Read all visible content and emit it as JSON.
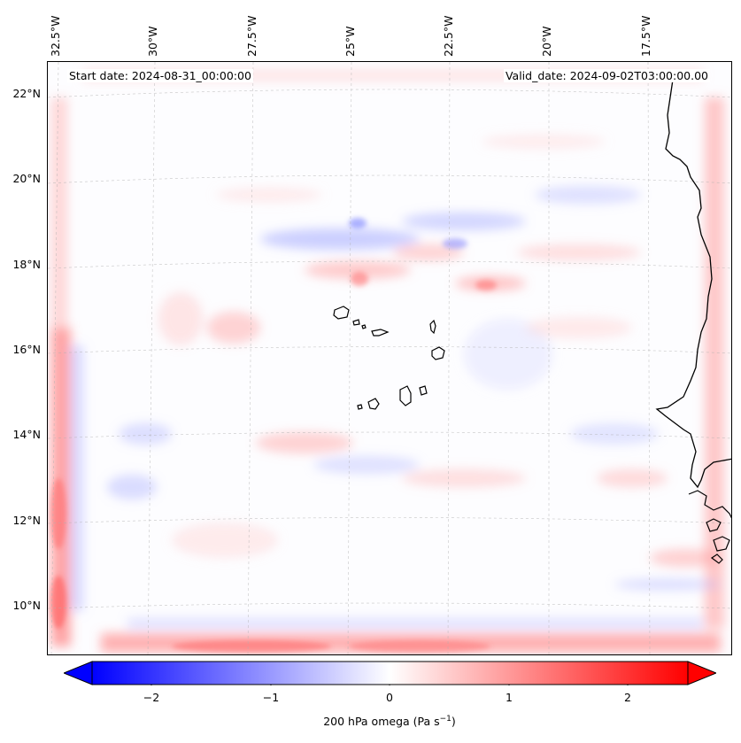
{
  "map": {
    "start_date": "Start date: 2024-08-31_00:00:00",
    "valid_date": "Valid_date: 2024-09-02T03:00:00.00",
    "lon_labels": [
      "32.5°W",
      "30°W",
      "27.5°W",
      "25°W",
      "22.5°W",
      "20°W",
      "17.5°W"
    ],
    "lat_labels": [
      "22°N",
      "20°N",
      "18°N",
      "16°N",
      "14°N",
      "12°N",
      "10°N"
    ],
    "extent": {
      "lon_min": -33.0,
      "lon_max": -16.0,
      "lat_min": 8.8,
      "lat_max": 22.8
    },
    "field": "200 hPa omega",
    "features": [
      "coastline-west-africa",
      "cape-verde-islands"
    ]
  },
  "colorbar": {
    "ticks": [
      "−2",
      "−1",
      "0",
      "1",
      "2"
    ],
    "tick_values": [
      -2,
      -1,
      0,
      1,
      2
    ],
    "range": [
      -2.5,
      2.5
    ],
    "label_main": "200 hPa omega (Pa s",
    "label_sup": "−1",
    "label_end": ")",
    "color_low": "#0000ff",
    "color_mid": "#ffffff",
    "color_high": "#ff0000",
    "extend": "both"
  }
}
